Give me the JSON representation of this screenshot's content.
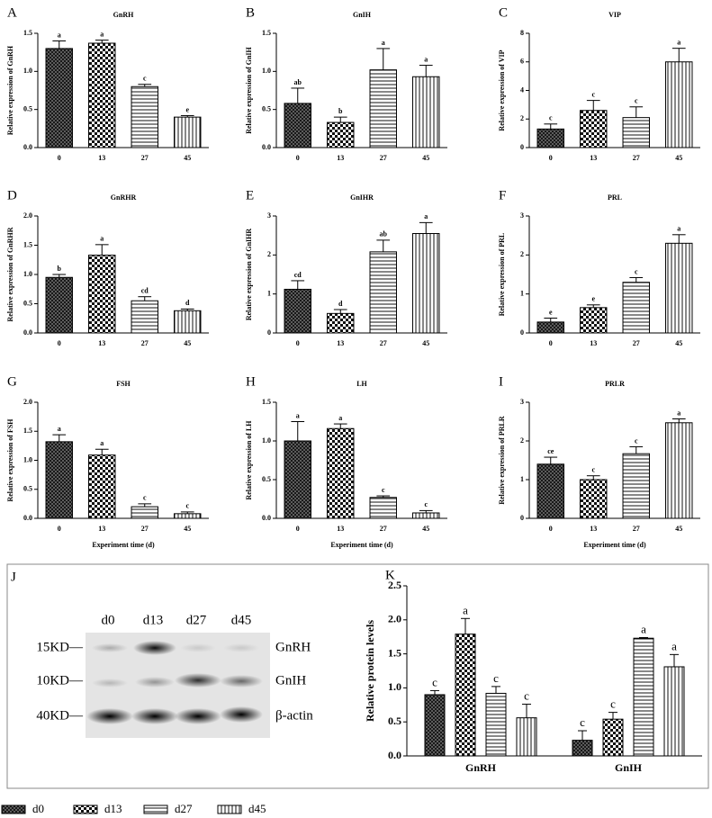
{
  "chart_data": [
    {
      "type": "bar",
      "panel": "A",
      "title": "GnRH",
      "ylabel": "Relative expression of GnRH",
      "categories": [
        "0",
        "13",
        "27",
        "45"
      ],
      "values": [
        1.3,
        1.37,
        0.8,
        0.4
      ],
      "errors": [
        0.1,
        0.04,
        0.03,
        0.02
      ],
      "annotations": [
        "a",
        "a",
        "c",
        "e"
      ],
      "ylim": [
        0,
        1.5
      ],
      "yticks": [
        {
          "value": 0,
          "label": "0.0"
        },
        0.5,
        {
          "value": 1,
          "label": "1.0"
        },
        1.5
      ]
    },
    {
      "type": "bar",
      "panel": "B",
      "title": "GnIH",
      "ylabel": "Relative expression of GnIH",
      "categories": [
        "0",
        "13",
        "27",
        "45"
      ],
      "values": [
        0.58,
        0.33,
        1.02,
        0.93
      ],
      "errors": [
        0.2,
        0.07,
        0.28,
        0.15
      ],
      "annotations": [
        "ab",
        "b",
        "a",
        "a"
      ],
      "ylim": [
        0,
        1.5
      ],
      "yticks": [
        {
          "value": 0,
          "label": "0.0"
        },
        0.5,
        {
          "value": 1,
          "label": "1.0"
        },
        1.5
      ]
    },
    {
      "type": "bar",
      "panel": "C",
      "title": "VIP",
      "ylabel": "Relative expression of VIP",
      "categories": [
        "0",
        "13",
        "27",
        "45"
      ],
      "values": [
        1.3,
        2.6,
        2.1,
        6.0
      ],
      "errors": [
        0.35,
        0.7,
        0.75,
        0.95
      ],
      "annotations": [
        "c",
        "c",
        "c",
        "a"
      ],
      "ylim": [
        0,
        8
      ],
      "yticks": [
        0,
        2,
        4,
        6,
        8
      ]
    },
    {
      "type": "bar",
      "panel": "D",
      "title": "GnRHR",
      "ylabel": "Relative expression of GnRHR",
      "categories": [
        "0",
        "13",
        "27",
        "45"
      ],
      "values": [
        0.95,
        1.33,
        0.55,
        0.38
      ],
      "errors": [
        0.05,
        0.18,
        0.07,
        0.03
      ],
      "annotations": [
        "b",
        "a",
        "cd",
        "d"
      ],
      "ylim": [
        0,
        2
      ],
      "yticks": [
        {
          "value": 0,
          "label": "0.0"
        },
        0.5,
        {
          "value": 1,
          "label": "1.0"
        },
        1.5,
        {
          "value": 2,
          "label": "2.0"
        }
      ]
    },
    {
      "type": "bar",
      "panel": "E",
      "title": "GnIHR",
      "ylabel": "Relative expression of GnIHR",
      "categories": [
        "0",
        "13",
        "27",
        "45"
      ],
      "values": [
        1.12,
        0.5,
        2.08,
        2.55
      ],
      "errors": [
        0.22,
        0.1,
        0.3,
        0.28
      ],
      "annotations": [
        "cd",
        "d",
        "ab",
        "a"
      ],
      "ylim": [
        0,
        3
      ],
      "yticks": [
        0,
        1,
        2,
        3
      ]
    },
    {
      "type": "bar",
      "panel": "F",
      "title": "PRL",
      "ylabel": "Relative expression of PRL",
      "categories": [
        "0",
        "13",
        "27",
        "45"
      ],
      "values": [
        0.28,
        0.65,
        1.3,
        2.3
      ],
      "errors": [
        0.1,
        0.07,
        0.12,
        0.22
      ],
      "annotations": [
        "e",
        "e",
        "c",
        "a"
      ],
      "ylim": [
        0,
        3
      ],
      "yticks": [
        0,
        1,
        2,
        3
      ]
    },
    {
      "type": "bar",
      "panel": "G",
      "title": "FSH",
      "ylabel": "Relative expression of FSH",
      "xlabel": "Experiment time (d)",
      "categories": [
        "0",
        "13",
        "27",
        "45"
      ],
      "values": [
        1.32,
        1.09,
        0.2,
        0.08
      ],
      "errors": [
        0.12,
        0.1,
        0.05,
        0.03
      ],
      "annotations": [
        "a",
        "a",
        "c",
        "c"
      ],
      "ylim": [
        0,
        2
      ],
      "yticks": [
        {
          "value": 0,
          "label": "0.0"
        },
        0.5,
        {
          "value": 1,
          "label": "1.0"
        },
        1.5,
        {
          "value": 2,
          "label": "2.0"
        }
      ]
    },
    {
      "type": "bar",
      "panel": "H",
      "title": "LH",
      "ylabel": "Relative expression of LH",
      "xlabel": "Experiment time (d)",
      "categories": [
        "0",
        "13",
        "27",
        "45"
      ],
      "values": [
        1.0,
        1.16,
        0.27,
        0.07
      ],
      "errors": [
        0.25,
        0.06,
        0.02,
        0.03
      ],
      "annotations": [
        "a",
        "a",
        "c",
        "c"
      ],
      "ylim": [
        0,
        1.5
      ],
      "yticks": [
        {
          "value": 0,
          "label": "0.0"
        },
        0.5,
        {
          "value": 1,
          "label": "1.0"
        },
        1.5
      ]
    },
    {
      "type": "bar",
      "panel": "I",
      "title": "PRLR",
      "ylabel": "Relative expression of PRLR",
      "xlabel": "Experiment time (d)",
      "categories": [
        "0",
        "13",
        "27",
        "45"
      ],
      "values": [
        1.4,
        1.0,
        1.67,
        2.47
      ],
      "errors": [
        0.18,
        0.1,
        0.18,
        0.1
      ],
      "annotations": [
        "ce",
        "c",
        "c",
        "a"
      ],
      "ylim": [
        0,
        3
      ],
      "yticks": [
        0,
        1,
        2,
        3
      ]
    },
    {
      "type": "grouped_bar",
      "panel": "K",
      "ylabel": "Relative protein levels",
      "categories": [
        "GnRH",
        "GnIH"
      ],
      "series": [
        {
          "name": "d0",
          "values": [
            0.9,
            0.23
          ],
          "errors": [
            0.06,
            0.14
          ],
          "annotations": [
            "c",
            "c"
          ]
        },
        {
          "name": "d13",
          "values": [
            1.79,
            0.54
          ],
          "errors": [
            0.23,
            0.1
          ],
          "annotations": [
            "a",
            "c"
          ]
        },
        {
          "name": "d27",
          "values": [
            0.92,
            1.73
          ],
          "errors": [
            0.1,
            0.01
          ],
          "annotations": [
            "c",
            "a"
          ]
        },
        {
          "name": "d45",
          "values": [
            0.56,
            1.31
          ],
          "errors": [
            0.2,
            0.18
          ],
          "annotations": [
            "c",
            "a"
          ]
        }
      ],
      "ylim": [
        0,
        2.5
      ],
      "yticks": [
        {
          "value": 0,
          "label": "0.0"
        },
        0.5,
        {
          "value": 1,
          "label": "1.0"
        },
        1.5,
        {
          "value": 2,
          "label": "2.0"
        },
        2.5
      ]
    }
  ],
  "blot": {
    "panel": "J",
    "lanes": [
      "d0",
      "d13",
      "d27",
      "d45"
    ],
    "rows": [
      {
        "size": "15KD—",
        "protein": "GnRH"
      },
      {
        "size": "10KD—",
        "protein": "GnIH"
      },
      {
        "size": "40KD—",
        "protein": "β-actin"
      }
    ]
  }
}
